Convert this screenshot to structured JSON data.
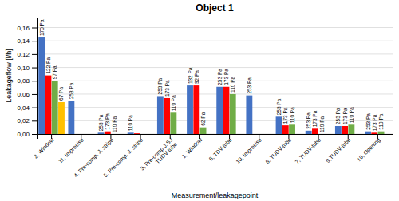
{
  "chart_data": {
    "type": "bar",
    "title": "Object 1",
    "xlabel": "Measurement/leakagepoint",
    "ylabel": "Leakageflow [l/h]",
    "categories": [
      "2, Window",
      "11, Imprecise",
      "4, Pre-comp. J. stripe",
      "5, Pre-comp. J. stripe",
      "3, Pre-comp J.S./\nTUDV-tube",
      "1, Window",
      "8, TDV-tube",
      "10, Imprecise",
      "6, TUDV-tube",
      "7, TUDV-tube",
      "9,TUDV-tube",
      "10, Opening"
    ],
    "series": [
      {
        "color": "#4472C4",
        "values": [
          0.145,
          0.05,
          0.002,
          0.002,
          0.057,
          0.073,
          0.071,
          0.058,
          0.026,
          0.005,
          0.012,
          0.004
        ],
        "annotations": [
          "170 Pa",
          "253 Pa",
          "253 Pa",
          "110 Pa",
          "253 Pa",
          "132 Pa",
          "253 Pa",
          "253 Pa",
          "253 Pa",
          "253 Pa",
          "253 Pa",
          "253 Pa"
        ]
      },
      {
        "color": "#FF0000",
        "values": [
          0.088,
          0.0,
          0.004,
          0.001,
          0.054,
          0.073,
          0.071,
          0.0,
          0.013,
          0.008,
          0.012,
          0.002
        ],
        "annotations": [
          "122 Pa",
          null,
          "173 Pa",
          null,
          "173 Pa",
          "92 Pa",
          "173 Pa",
          null,
          "173 Pa",
          "173 Pa",
          "173 Pa",
          "173 Pa"
        ]
      },
      {
        "color": "#70AD47",
        "values": [
          0.08,
          0.0,
          0.0,
          0.0,
          0.032,
          0.01,
          0.06,
          0.0,
          0.014,
          0.0,
          0.014,
          0.004
        ],
        "annotations": [
          "97 Pa",
          null,
          "110 Pa",
          null,
          "110 Pa",
          "62 Pa",
          "110 Pa",
          null,
          "110 Pa",
          "110 Pa",
          "110 Pa",
          "110 Pa"
        ]
      },
      {
        "color": "#FFC000",
        "values": [
          0.048,
          0.0,
          0.0,
          0.0,
          0.0,
          0.0,
          0.0,
          0.0,
          0.0,
          0.0,
          0.0,
          0.0
        ],
        "annotations": [
          "67 Pa",
          null,
          null,
          null,
          null,
          null,
          null,
          null,
          null,
          null,
          null,
          null
        ]
      }
    ],
    "ylim": [
      0.0,
      0.175
    ],
    "yticks": [
      {
        "value": 0.0,
        "label": "0,00"
      },
      {
        "value": 0.02,
        "label": "0,02"
      },
      {
        "value": 0.04,
        "label": "0,04"
      },
      {
        "value": 0.06,
        "label": "0,06"
      },
      {
        "value": 0.08,
        "label": "0,08"
      },
      {
        "value": 0.1,
        "label": "0,10"
      },
      {
        "value": 0.12,
        "label": "0,12"
      },
      {
        "value": 0.14,
        "label": "0,14"
      },
      {
        "value": 0.16,
        "label": "0,16"
      }
    ],
    "grid": true
  }
}
